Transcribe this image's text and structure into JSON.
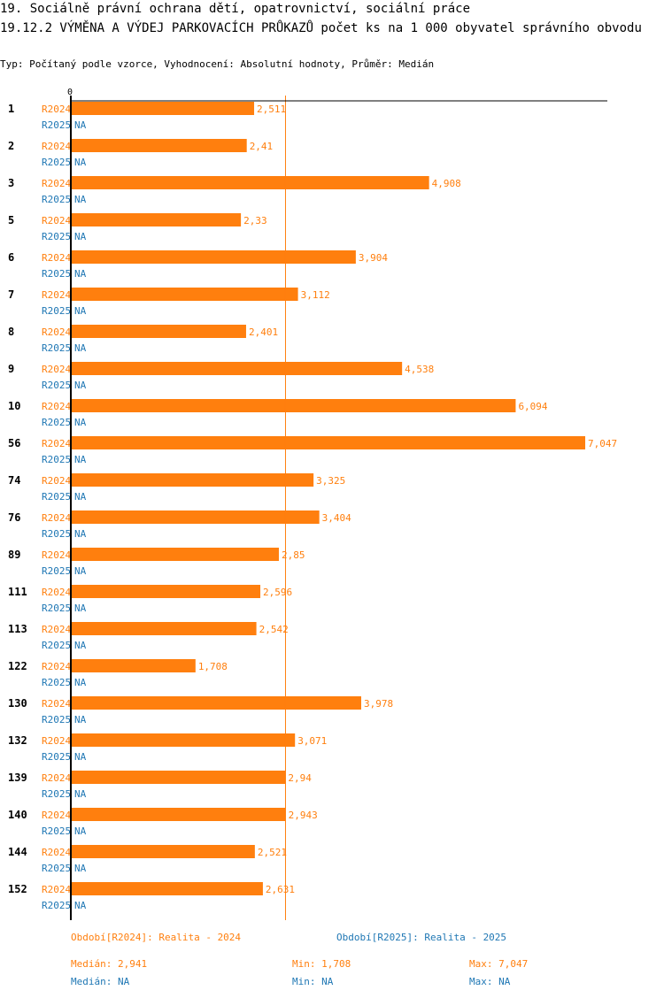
{
  "header": {
    "title": "19. Sociálně právní ochrana dětí, opatrovnictví, sociální práce",
    "indicator": "19.12.2 VÝMĚNA A VÝDEJ PARKOVACÍCH PRŮKAZŮ počet ks na 1 000 obyvatel správního obvodu",
    "subtitle": "Typ: Počítaný podle vzorce, Vyhodnocení: Absolutní hodnoty, Průměr: Medián"
  },
  "colors": {
    "r2024": "#ff7f0e",
    "r2025": "#1f77b4",
    "median_line": "#ff7f0e",
    "axis": "#000000"
  },
  "chart_data": {
    "type": "bar",
    "orientation": "horizontal",
    "x_axis_start_label": "0",
    "xlim": [
      0,
      7.35
    ],
    "categories": [
      "1",
      "2",
      "3",
      "5",
      "6",
      "7",
      "8",
      "9",
      "10",
      "56",
      "74",
      "76",
      "89",
      "111",
      "113",
      "122",
      "130",
      "132",
      "139",
      "140",
      "144",
      "152"
    ],
    "series": [
      {
        "name": "R2024",
        "values": [
          2.511,
          2.41,
          4.908,
          2.33,
          3.904,
          3.112,
          2.401,
          4.538,
          6.094,
          7.047,
          3.325,
          3.404,
          2.85,
          2.596,
          2.542,
          1.708,
          3.978,
          3.071,
          2.94,
          2.943,
          2.521,
          2.631
        ],
        "labels": [
          "2,511",
          "2,41",
          "4,908",
          "2,33",
          "3,904",
          "3,112",
          "2,401",
          "4,538",
          "6,094",
          "7,047",
          "3,325",
          "3,404",
          "2,85",
          "2,596",
          "2,542",
          "1,708",
          "3,978",
          "3,071",
          "2,94",
          "2,943",
          "2,521",
          "2,631"
        ]
      },
      {
        "name": "R2025",
        "values": [
          null,
          null,
          null,
          null,
          null,
          null,
          null,
          null,
          null,
          null,
          null,
          null,
          null,
          null,
          null,
          null,
          null,
          null,
          null,
          null,
          null,
          null
        ],
        "labels": [
          "NA",
          "NA",
          "NA",
          "NA",
          "NA",
          "NA",
          "NA",
          "NA",
          "NA",
          "NA",
          "NA",
          "NA",
          "NA",
          "NA",
          "NA",
          "NA",
          "NA",
          "NA",
          "NA",
          "NA",
          "NA",
          "NA"
        ]
      }
    ],
    "median_reference": 2.941
  },
  "legend": {
    "r2024": {
      "period": "Období[R2024]: Realita - 2024",
      "median": "Medián: 2,941",
      "min": "Min: 1,708",
      "max": "Max: 7,047"
    },
    "r2025": {
      "period": "Období[R2025]: Realita - 2025",
      "median": "Medián: NA",
      "min": "Min: NA",
      "max": "Max: NA"
    }
  }
}
